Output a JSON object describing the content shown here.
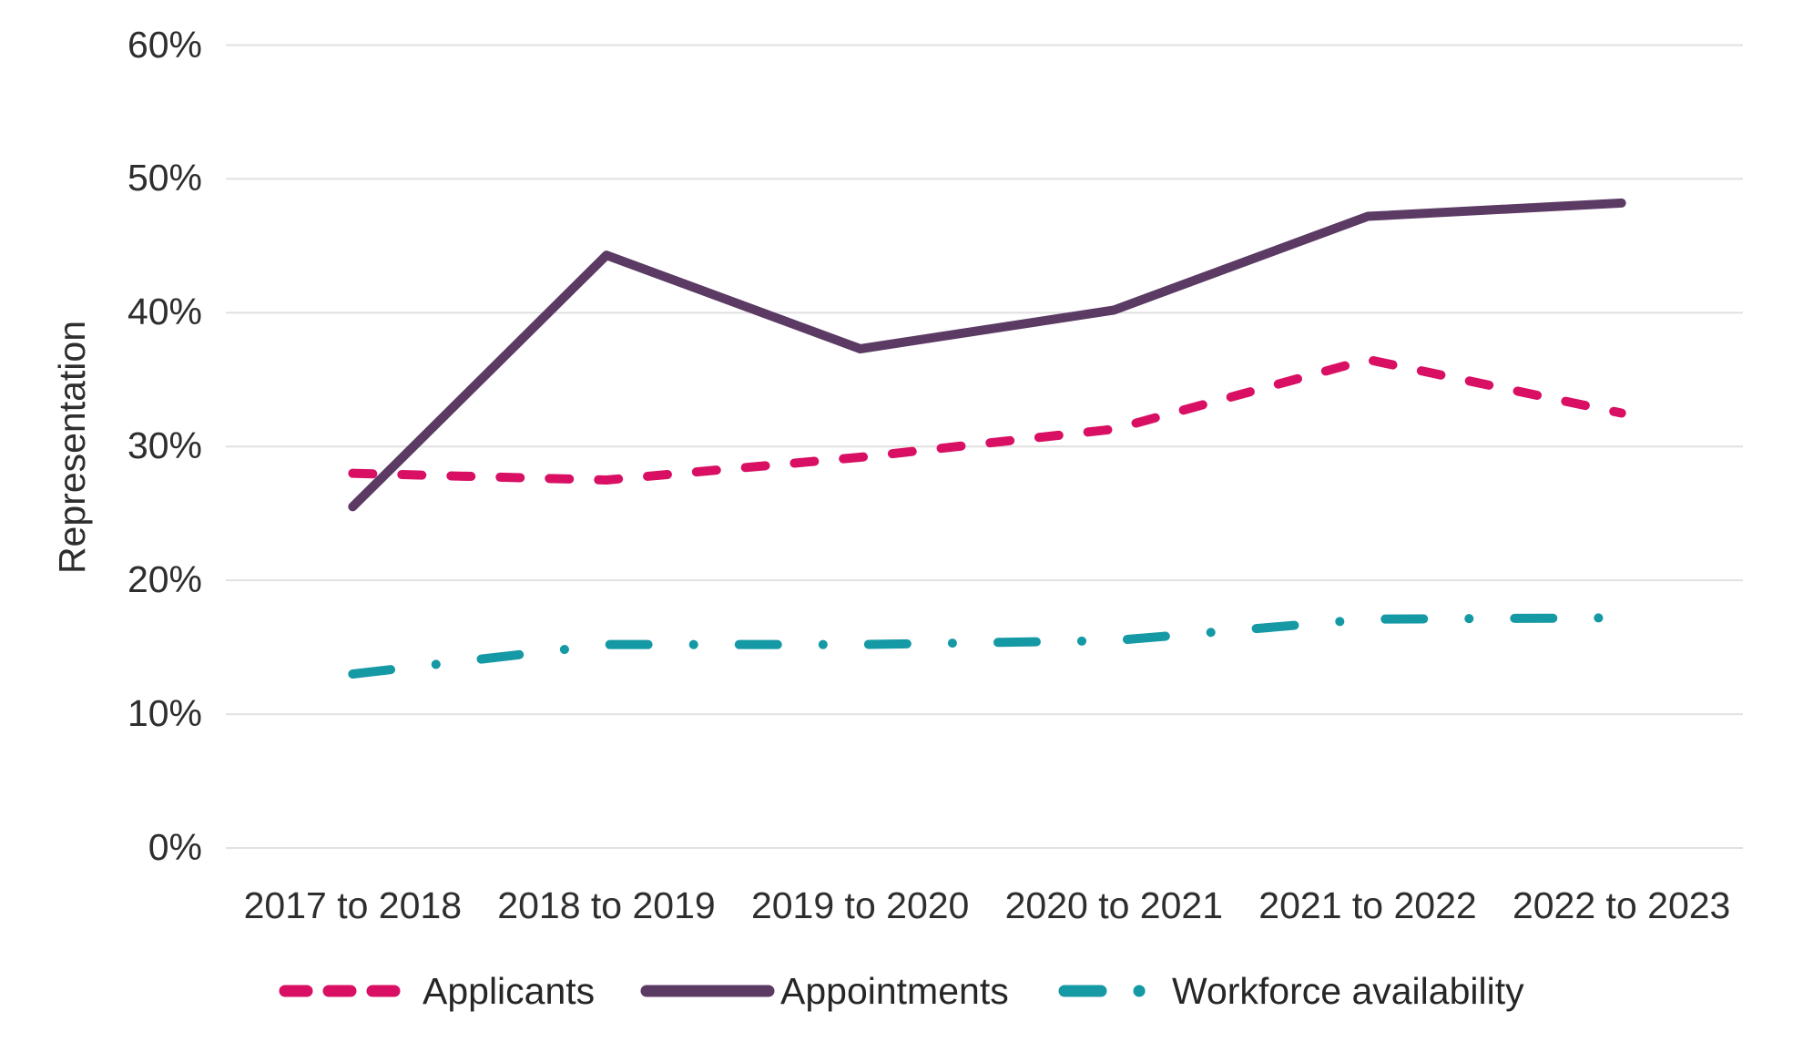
{
  "chart_data": {
    "type": "line",
    "title": "",
    "xlabel": "",
    "ylabel": "Representation",
    "ylim": [
      0,
      60
    ],
    "grid": true,
    "legend_position": "bottom",
    "categories": [
      "2017 to 2018",
      "2018 to 2019",
      "2019 to 2020",
      "2020 to 2021",
      "2021 to 2022",
      "2022 to 2023"
    ],
    "y_ticks": [
      {
        "value": 0,
        "label": "0%"
      },
      {
        "value": 10,
        "label": "10%"
      },
      {
        "value": 20,
        "label": "20%"
      },
      {
        "value": 30,
        "label": "30%"
      },
      {
        "value": 40,
        "label": "40%"
      },
      {
        "value": 50,
        "label": "50%"
      },
      {
        "value": 60,
        "label": "60%"
      }
    ],
    "series": [
      {
        "name": "Applicants",
        "slug": "applicants",
        "color": "#d80f63",
        "style": "dashed",
        "values": [
          28.0,
          27.5,
          29.2,
          31.3,
          36.5,
          32.5
        ]
      },
      {
        "name": "Appointments",
        "slug": "appointments",
        "color": "#5b3a64",
        "style": "solid",
        "values": [
          25.5,
          44.3,
          37.3,
          40.2,
          47.2,
          48.2
        ]
      },
      {
        "name": "Workforce availability",
        "slug": "workforce-availability",
        "color": "#1599a5",
        "style": "dash-dot",
        "values": [
          13.0,
          15.2,
          15.2,
          15.5,
          17.1,
          17.2
        ]
      }
    ],
    "colors": {
      "gridline": "#e2e0e0",
      "axis_text": "#2e2e2e"
    }
  }
}
